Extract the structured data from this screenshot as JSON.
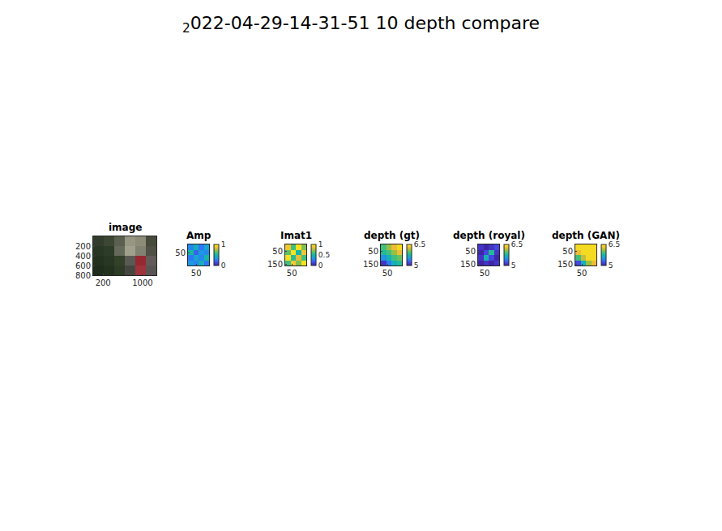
{
  "figure_title": {
    "subscript": "2",
    "text": "022-04-29-14-31-51 10 depth compare"
  },
  "chart_data": [
    {
      "type": "image",
      "title": "image",
      "xlim": [
        0,
        1280
      ],
      "ylim": [
        800,
        0
      ],
      "xticks": [
        200,
        1000
      ],
      "yticks": [
        200,
        400,
        600,
        800
      ],
      "z": [
        [
          [
            50,
            60,
            45
          ],
          [
            60,
            70,
            50
          ],
          [
            90,
            95,
            80
          ],
          [
            150,
            150,
            130
          ],
          [
            140,
            140,
            120
          ],
          [
            70,
            75,
            60
          ]
        ],
        [
          [
            40,
            55,
            35
          ],
          [
            45,
            60,
            40
          ],
          [
            100,
            105,
            90
          ],
          [
            160,
            160,
            140
          ],
          [
            130,
            130,
            115
          ],
          [
            80,
            80,
            70
          ]
        ],
        [
          [
            35,
            50,
            30
          ],
          [
            40,
            55,
            35
          ],
          [
            50,
            65,
            40
          ],
          [
            90,
            90,
            85
          ],
          [
            150,
            40,
            50
          ],
          [
            100,
            90,
            90
          ]
        ],
        [
          [
            30,
            45,
            28
          ],
          [
            35,
            50,
            30
          ],
          [
            45,
            60,
            38
          ],
          [
            70,
            70,
            65
          ],
          [
            160,
            50,
            60
          ],
          [
            90,
            85,
            85
          ]
        ]
      ]
    },
    {
      "type": "heatmap",
      "title": "Amp",
      "xlim": [
        0,
        128
      ],
      "ylim": [
        128,
        0
      ],
      "xticks": [
        50
      ],
      "yticks": [
        50
      ],
      "x": [
        16,
        48,
        80,
        112
      ],
      "y": [
        16,
        48,
        80,
        112
      ],
      "z": [
        [
          0.3,
          0.45,
          0.25,
          0.4
        ],
        [
          0.5,
          0.2,
          0.35,
          0.3
        ],
        [
          0.25,
          0.4,
          0.3,
          0.5
        ],
        [
          0.35,
          0.3,
          0.45,
          0.25
        ]
      ],
      "clim": [
        0,
        1
      ],
      "cticks": [
        0,
        1
      ]
    },
    {
      "type": "heatmap",
      "title": "Imat1",
      "xlim": [
        0,
        160
      ],
      "ylim": [
        160,
        0
      ],
      "xticks": [
        50
      ],
      "yticks": [
        50,
        150
      ],
      "x": [
        20,
        60,
        100,
        140
      ],
      "y": [
        20,
        60,
        100,
        140
      ],
      "z": [
        [
          0.9,
          0.6,
          0.95,
          0.7
        ],
        [
          0.65,
          0.95,
          0.5,
          0.9
        ],
        [
          0.95,
          0.55,
          0.85,
          0.6
        ],
        [
          0.6,
          0.9,
          0.7,
          0.95
        ]
      ],
      "clim": [
        0,
        1
      ],
      "cticks": [
        0,
        0.5,
        1
      ]
    },
    {
      "type": "heatmap",
      "title": "depth (gt)",
      "xlim": [
        0,
        160
      ],
      "ylim": [
        160,
        0
      ],
      "xticks": [
        50
      ],
      "yticks": [
        50,
        150
      ],
      "x": [
        20,
        60,
        100,
        140
      ],
      "y": [
        20,
        60,
        100,
        140
      ],
      "z": [
        [
          5.9,
          6.1,
          6.3,
          6.4
        ],
        [
          5.8,
          5.9,
          6.1,
          6.3
        ],
        [
          5.5,
          5.7,
          5.9,
          6.0
        ],
        [
          5.1,
          5.4,
          5.7,
          5.8
        ]
      ],
      "clim": [
        5,
        6.5
      ],
      "cticks": [
        5,
        6.5
      ]
    },
    {
      "type": "heatmap",
      "title": "depth (royal)",
      "xlim": [
        0,
        160
      ],
      "ylim": [
        160,
        0
      ],
      "xticks": [
        50
      ],
      "yticks": [
        50,
        150
      ],
      "x": [
        20,
        60,
        100,
        140
      ],
      "y": [
        20,
        60,
        100,
        140
      ],
      "z": [
        [
          5.1,
          5.0,
          5.1,
          5.2
        ],
        [
          5.0,
          5.2,
          5.8,
          5.1
        ],
        [
          5.1,
          5.7,
          5.2,
          5.0
        ],
        [
          5.0,
          5.1,
          5.0,
          5.1
        ]
      ],
      "clim": [
        5,
        6.5
      ],
      "cticks": [
        5,
        6.5
      ]
    },
    {
      "type": "heatmap",
      "title": "depth (GAN)",
      "xlim": [
        0,
        160
      ],
      "ylim": [
        160,
        0
      ],
      "xticks": [
        50
      ],
      "yticks": [
        50,
        150
      ],
      "x": [
        20,
        60,
        100,
        140
      ],
      "y": [
        20,
        60,
        100,
        140
      ],
      "z": [
        [
          6.4,
          6.4,
          6.4,
          6.4
        ],
        [
          6.3,
          6.4,
          6.4,
          6.4
        ],
        [
          5.9,
          6.2,
          6.4,
          6.4
        ],
        [
          5.2,
          5.7,
          6.1,
          6.3
        ]
      ],
      "clim": [
        5,
        6.5
      ],
      "cticks": [
        5,
        6.5
      ]
    }
  ]
}
